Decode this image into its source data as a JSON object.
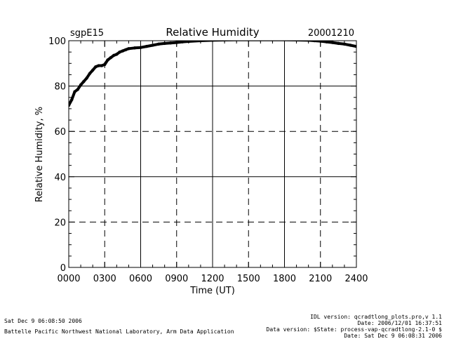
{
  "header": {
    "site": "sgpE15",
    "title": "Relative Humidity",
    "date": "20001210"
  },
  "footer": {
    "left_line1": "Sat Dec  9 06:08:50 2006",
    "left_line2": "Battelle Pacific Northwest National Laboratory, Arm Data Application",
    "right_line1": "IDL version: qcradtlong_plots.pro,v 1.1",
    "right_line2": "Date: 2006/12/01 16:37:51",
    "right_line3": "Data version: $State: process-vap-qcradtlong-2.1-0 $",
    "right_line4": "Date: Sat Dec  9 06:08:31 2006"
  },
  "chart_data": {
    "type": "line",
    "xlabel": "Time (UT)",
    "ylabel": "Relative Humidity, %",
    "xlim": [
      0,
      24
    ],
    "ylim": [
      0,
      100
    ],
    "x_ticks": [
      0,
      3,
      6,
      9,
      12,
      15,
      18,
      21,
      24
    ],
    "x_tick_labels": [
      "0000",
      "0300",
      "0600",
      "0900",
      "1200",
      "1500",
      "1800",
      "2100",
      "2400"
    ],
    "y_ticks": [
      0,
      20,
      40,
      60,
      80,
      100
    ],
    "y_tick_labels": [
      "0",
      "20",
      "40",
      "60",
      "80",
      "100"
    ],
    "grid": true,
    "series": [
      {
        "color": "#000000",
        "x": [
          0.0,
          0.25,
          0.5,
          0.75,
          1.0,
          1.25,
          1.5,
          1.75,
          2.0,
          2.25,
          2.5,
          2.75,
          3.0,
          3.25,
          3.5,
          3.75,
          4.0,
          4.25,
          4.5,
          4.75,
          5.0,
          5.5,
          6.0,
          6.5,
          7.0,
          7.5,
          8.0,
          8.5,
          9.0,
          9.5,
          10.0,
          11.0,
          12.0,
          13.0,
          14.0,
          15.0,
          16.0,
          17.0,
          18.0,
          19.0,
          20.0,
          20.5,
          21.0,
          21.5,
          22.0,
          22.5,
          23.0,
          23.5,
          24.0
        ],
        "y": [
          71.5,
          74.0,
          77.5,
          78.5,
          80.5,
          82.0,
          83.5,
          85.5,
          87.0,
          88.5,
          89.0,
          89.0,
          89.5,
          91.5,
          92.5,
          93.5,
          94.0,
          95.0,
          95.5,
          96.0,
          96.5,
          96.8,
          97.0,
          97.5,
          98.0,
          98.5,
          98.8,
          99.0,
          99.2,
          99.5,
          99.7,
          100.0,
          100.2,
          100.3,
          100.4,
          100.4,
          100.4,
          100.4,
          100.4,
          100.3,
          100.2,
          100.0,
          99.8,
          99.5,
          99.2,
          98.8,
          98.5,
          98.0,
          97.5
        ]
      }
    ]
  }
}
